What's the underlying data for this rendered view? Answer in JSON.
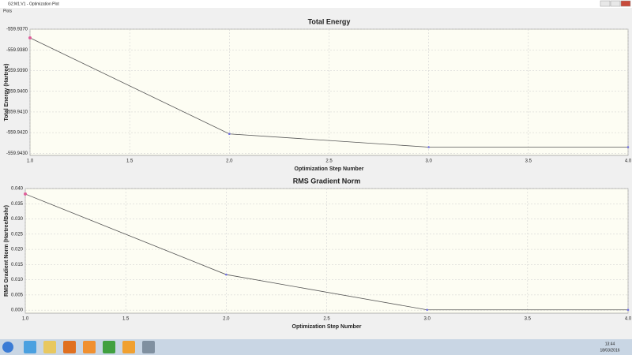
{
  "window": {
    "title": "G2:M1:V1 - Optimization Plot",
    "menu": [
      "Plots"
    ],
    "clock": {
      "time": "13:44",
      "date": "18/03/2016"
    }
  },
  "chart_data": [
    {
      "type": "line",
      "title": "Total Energy",
      "x_label": "Optimization Step Number",
      "y_label": "Total Energy (Hartree)",
      "x": [
        1,
        2,
        3,
        4
      ],
      "values": [
        -559.93742,
        -559.94206,
        -559.9427,
        -559.9427
      ],
      "color": "#555555",
      "marker_color": "#7070e0",
      "selected_color": "#e0609a",
      "selected_index": 0,
      "xlim": [
        1,
        4
      ],
      "ylim": [
        -559.9431,
        -559.937
      ],
      "xticks": [
        {
          "value": 1,
          "label": "1.0"
        },
        {
          "value": 1.5,
          "label": "1.5"
        },
        {
          "value": 2,
          "label": "2.0"
        },
        {
          "value": 2.5,
          "label": "2.5"
        },
        {
          "value": 3,
          "label": "3.0"
        },
        {
          "value": 3.5,
          "label": "3.5"
        },
        {
          "value": 4,
          "label": "4.0"
        }
      ],
      "yticks": [
        {
          "value": -559.937,
          "label": "-559.9370"
        },
        {
          "value": -559.938,
          "label": "-559.9380"
        },
        {
          "value": -559.939,
          "label": "-559.9390"
        },
        {
          "value": -559.94,
          "label": "-559.9400"
        },
        {
          "value": -559.941,
          "label": "-559.9410"
        },
        {
          "value": -559.942,
          "label": "-559.9420"
        },
        {
          "value": -559.943,
          "label": "-559.9430"
        }
      ],
      "grid": true
    },
    {
      "type": "line",
      "title": "RMS Gradient Norm",
      "x_label": "Optimization Step Number",
      "y_label": "RMS Gradient Norm (Hartree/Bohr)",
      "x": [
        1,
        2,
        3,
        4
      ],
      "values": [
        0.0382,
        0.0117,
        0.0001,
        0.0001
      ],
      "color": "#555555",
      "marker_color": "#7070e0",
      "selected_color": "#e0609a",
      "selected_index": 0,
      "xlim": [
        1,
        4
      ],
      "ylim": [
        -0.001,
        0.04
      ],
      "xticks": [
        {
          "value": 1,
          "label": "1.0"
        },
        {
          "value": 1.5,
          "label": "1.5"
        },
        {
          "value": 2,
          "label": "2.0"
        },
        {
          "value": 2.5,
          "label": "2.5"
        },
        {
          "value": 3,
          "label": "3.0"
        },
        {
          "value": 3.5,
          "label": "3.5"
        },
        {
          "value": 4,
          "label": "4.0"
        }
      ],
      "yticks": [
        {
          "value": 0,
          "label": "0.000"
        },
        {
          "value": 0.005,
          "label": "0.005"
        },
        {
          "value": 0.01,
          "label": "0.010"
        },
        {
          "value": 0.015,
          "label": "0.015"
        },
        {
          "value": 0.02,
          "label": "0.020"
        },
        {
          "value": 0.025,
          "label": "0.025"
        },
        {
          "value": 0.03,
          "label": "0.030"
        },
        {
          "value": 0.035,
          "label": "0.035"
        },
        {
          "value": 0.04,
          "label": "0.040"
        }
      ],
      "grid": true
    }
  ]
}
